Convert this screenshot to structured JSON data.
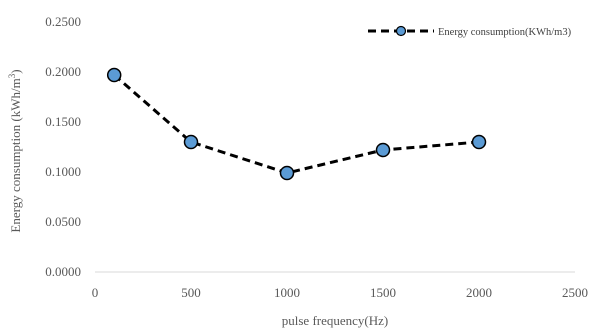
{
  "chart_data": {
    "type": "line",
    "title": "",
    "xlabel": "pulse frequency(Hz)",
    "ylabel": "Energy consumption (kWh/m³)",
    "xlim": [
      0,
      2500
    ],
    "ylim": [
      0,
      0.25
    ],
    "x_ticks": [
      0,
      500,
      1000,
      1500,
      2000,
      2500
    ],
    "y_ticks": [
      "0.0000",
      "0.0500",
      "0.1000",
      "0.1500",
      "0.2000",
      "0.2500"
    ],
    "y_tick_values": [
      0,
      0.05,
      0.1,
      0.15,
      0.2,
      0.25
    ],
    "grid": false,
    "legend_position": "top-right",
    "series": [
      {
        "name": "Energy consumption(KWh/m3)",
        "color": "#5B9BD5",
        "line_color": "#000000",
        "line_style": "dashed",
        "marker": "circle",
        "x": [
          100,
          500,
          1000,
          1500,
          2000
        ],
        "y": [
          0.197,
          0.13,
          0.099,
          0.122,
          0.13
        ]
      }
    ]
  }
}
